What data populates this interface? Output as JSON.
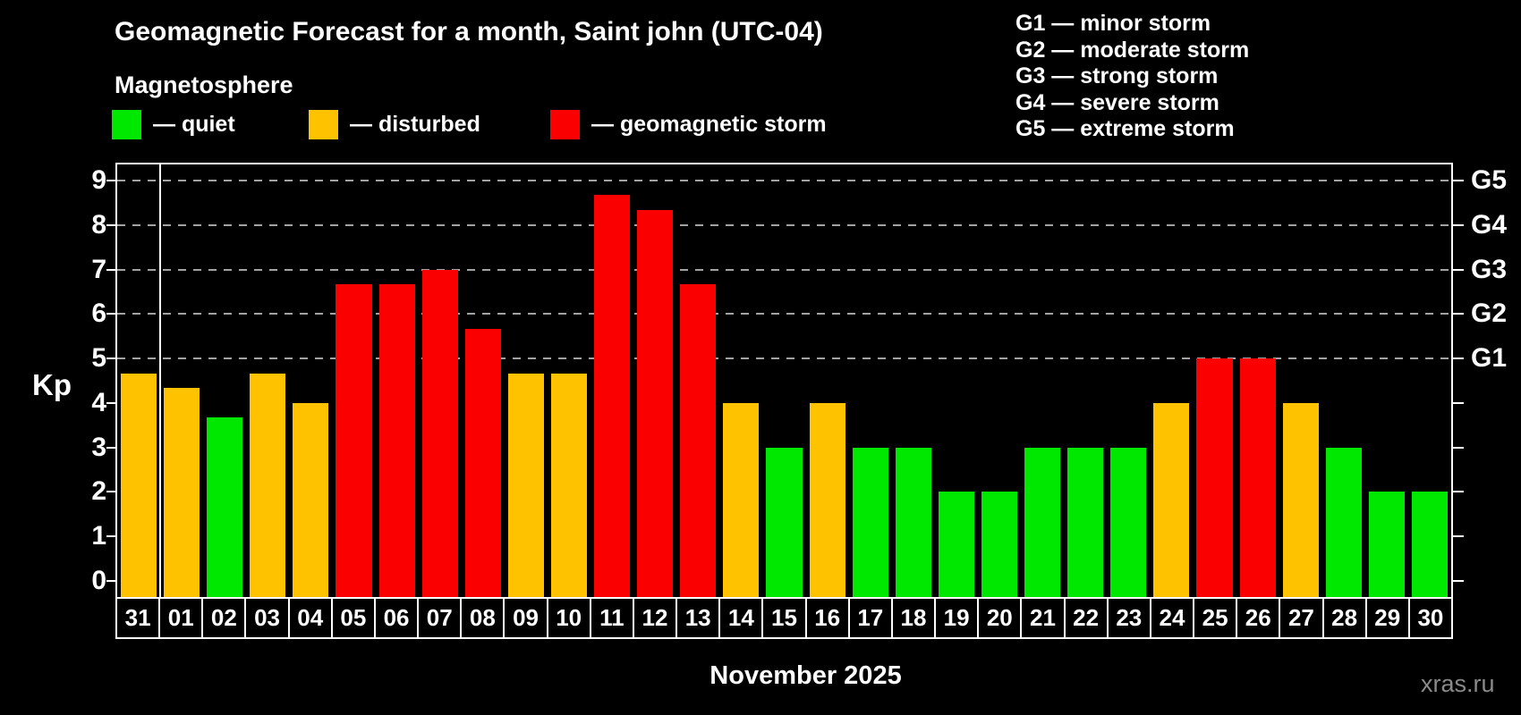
{
  "title": "Geomagnetic Forecast for a month, Saint john (UTC-04)",
  "subtitle": "Magnetosphere",
  "legend": {
    "items": [
      {
        "key": "quiet",
        "label": "— quiet"
      },
      {
        "key": "disturbed",
        "label": "— disturbed"
      },
      {
        "key": "storm",
        "label": "— geomagnetic storm"
      }
    ]
  },
  "g_legend": [
    "G1 — minor storm",
    "G2 — moderate storm",
    "G3 — strong storm",
    "G4 — severe storm",
    "G5 — extreme storm"
  ],
  "colors": {
    "quiet": "#00e800",
    "disturbed": "#ffc200",
    "storm": "#fb0000",
    "grid": "#a3a3a3",
    "axis": "#ffffff",
    "background": "#000000",
    "watermark": "#8a8a8a"
  },
  "chart_data": {
    "type": "bar",
    "title": "Geomagnetic Forecast for a month, Saint john (UTC-04)",
    "subtitle": "Magnetosphere",
    "ylabel": "Kp",
    "xlabel": "November 2025",
    "ylim": [
      -0.36,
      9.36
    ],
    "yticks": [
      0,
      1,
      2,
      3,
      4,
      5,
      6,
      7,
      8,
      9
    ],
    "gridlines_at_kp": [
      5,
      6,
      7,
      8,
      9
    ],
    "right_axis_labels": [
      {
        "kp": 5,
        "label": "G1"
      },
      {
        "kp": 6,
        "label": "G2"
      },
      {
        "kp": 7,
        "label": "G3"
      },
      {
        "kp": 8,
        "label": "G4"
      },
      {
        "kp": 9,
        "label": "G5"
      }
    ],
    "month_separator_after_day": "31",
    "days": [
      "31",
      "01",
      "02",
      "03",
      "04",
      "05",
      "06",
      "07",
      "08",
      "09",
      "10",
      "11",
      "12",
      "13",
      "14",
      "15",
      "16",
      "17",
      "18",
      "19",
      "20",
      "21",
      "22",
      "23",
      "24",
      "25",
      "26",
      "27",
      "28",
      "29",
      "30"
    ],
    "values": [
      4.67,
      4.33,
      3.67,
      4.67,
      4.0,
      6.67,
      6.67,
      7.0,
      5.67,
      4.67,
      4.67,
      8.67,
      8.33,
      6.67,
      4.0,
      3.0,
      4.0,
      3.0,
      3.0,
      2.0,
      2.0,
      3.0,
      3.0,
      3.0,
      4.0,
      5.0,
      5.0,
      4.0,
      3.0,
      2.0,
      2.0
    ],
    "status": [
      "disturbed",
      "disturbed",
      "quiet",
      "disturbed",
      "disturbed",
      "storm",
      "storm",
      "storm",
      "storm",
      "disturbed",
      "disturbed",
      "storm",
      "storm",
      "storm",
      "disturbed",
      "quiet",
      "disturbed",
      "quiet",
      "quiet",
      "quiet",
      "quiet",
      "quiet",
      "quiet",
      "quiet",
      "disturbed",
      "storm",
      "storm",
      "disturbed",
      "quiet",
      "quiet",
      "quiet"
    ]
  },
  "watermark": "xras.ru"
}
